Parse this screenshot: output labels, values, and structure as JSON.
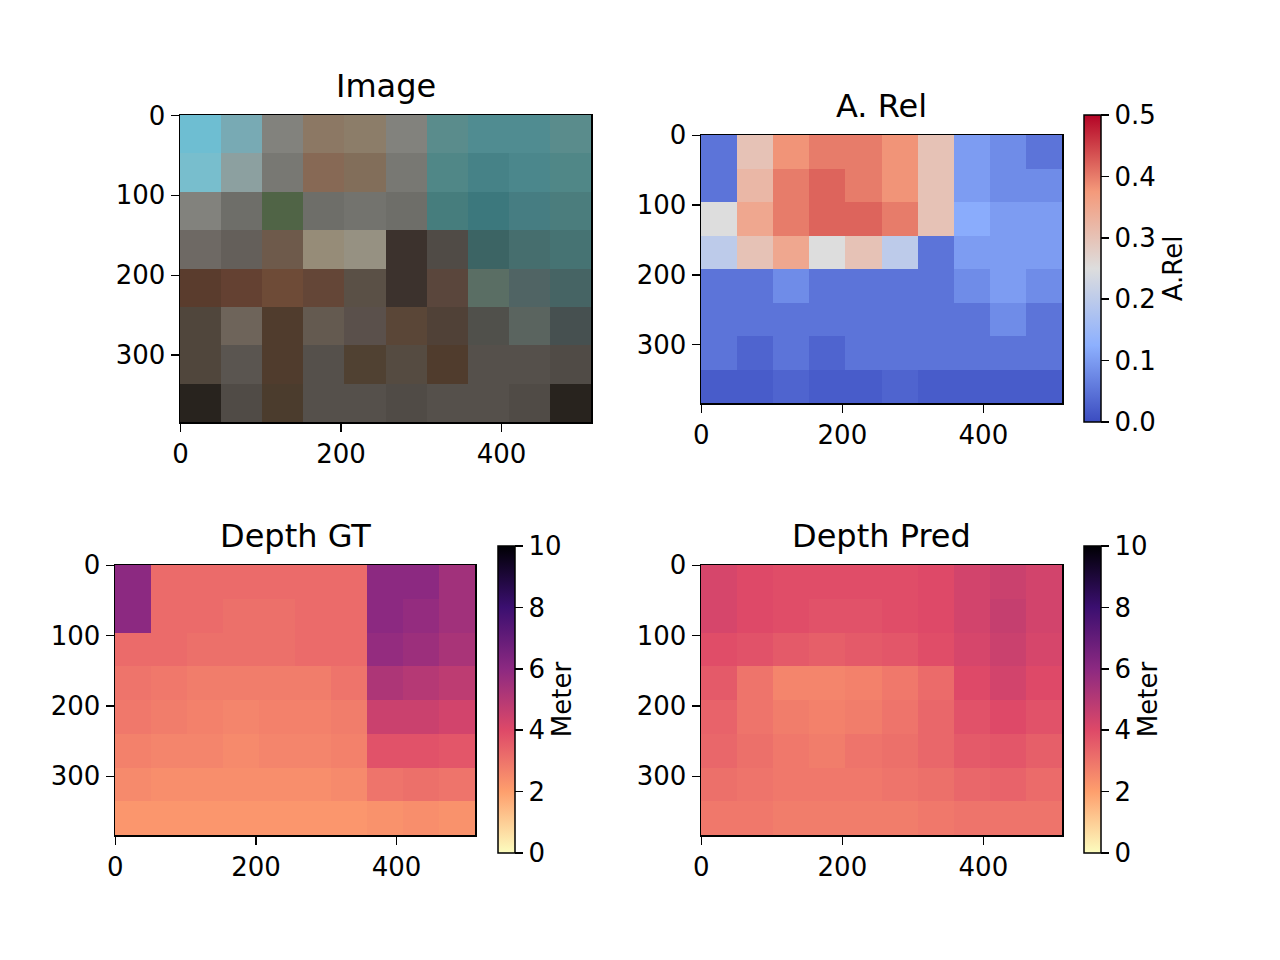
{
  "chart_data": [
    {
      "type": "image",
      "title": "Image",
      "xlim": [
        -0.5,
        511.5
      ],
      "ylim": [
        383.5,
        -0.5
      ],
      "xticks": [
        0,
        200,
        400
      ],
      "yticks": [
        0,
        100,
        200,
        300
      ],
      "pixels": [
        [
          [
            110,
            190,
            210
          ],
          [
            120,
            170,
            180
          ],
          [
            130,
            130,
            125
          ],
          [
            140,
            120,
            100
          ],
          [
            140,
            125,
            105
          ],
          [
            130,
            130,
            125
          ],
          [
            90,
            140,
            140
          ],
          [
            80,
            140,
            145
          ],
          [
            80,
            140,
            145
          ],
          [
            90,
            140,
            140
          ]
        ],
        [
          [
            120,
            190,
            205
          ],
          [
            140,
            160,
            160
          ],
          [
            120,
            120,
            115
          ],
          [
            135,
            105,
            85
          ],
          [
            130,
            110,
            90
          ],
          [
            120,
            120,
            115
          ],
          [
            80,
            135,
            135
          ],
          [
            70,
            130,
            135
          ],
          [
            75,
            135,
            140
          ],
          [
            80,
            135,
            135
          ]
        ],
        [
          [
            130,
            130,
            125
          ],
          [
            110,
            110,
            105
          ],
          [
            80,
            100,
            70
          ],
          [
            110,
            110,
            105
          ],
          [
            115,
            115,
            110
          ],
          [
            110,
            110,
            105
          ],
          [
            70,
            125,
            125
          ],
          [
            60,
            120,
            125
          ],
          [
            70,
            125,
            130
          ],
          [
            75,
            125,
            125
          ]
        ],
        [
          [
            110,
            105,
            100
          ],
          [
            100,
            95,
            90
          ],
          [
            110,
            90,
            75
          ],
          [
            150,
            140,
            120
          ],
          [
            150,
            145,
            130
          ],
          [
            60,
            50,
            45
          ],
          [
            80,
            75,
            70
          ],
          [
            60,
            100,
            100
          ],
          [
            70,
            110,
            110
          ],
          [
            70,
            115,
            115
          ]
        ],
        [
          [
            90,
            60,
            45
          ],
          [
            100,
            65,
            50
          ],
          [
            110,
            75,
            55
          ],
          [
            100,
            70,
            55
          ],
          [
            90,
            80,
            70
          ],
          [
            60,
            50,
            45
          ],
          [
            90,
            70,
            60
          ],
          [
            90,
            110,
            100
          ],
          [
            80,
            100,
            100
          ],
          [
            70,
            100,
            100
          ]
        ],
        [
          [
            80,
            70,
            60
          ],
          [
            110,
            100,
            90
          ],
          [
            80,
            60,
            45
          ],
          [
            100,
            90,
            80
          ],
          [
            90,
            80,
            75
          ],
          [
            90,
            70,
            55
          ],
          [
            80,
            65,
            55
          ],
          [
            80,
            80,
            75
          ],
          [
            90,
            100,
            95
          ],
          [
            70,
            80,
            80
          ]
        ],
        [
          [
            80,
            70,
            60
          ],
          [
            90,
            85,
            80
          ],
          [
            80,
            60,
            45
          ],
          [
            85,
            80,
            75
          ],
          [
            80,
            65,
            50
          ],
          [
            85,
            75,
            65
          ],
          [
            80,
            60,
            45
          ],
          [
            85,
            80,
            75
          ],
          [
            85,
            80,
            75
          ],
          [
            80,
            75,
            70
          ]
        ],
        [
          [
            40,
            35,
            30
          ],
          [
            80,
            75,
            70
          ],
          [
            75,
            60,
            45
          ],
          [
            85,
            80,
            75
          ],
          [
            85,
            80,
            75
          ],
          [
            80,
            75,
            70
          ],
          [
            85,
            80,
            75
          ],
          [
            85,
            80,
            75
          ],
          [
            80,
            75,
            70
          ],
          [
            40,
            35,
            30
          ]
        ]
      ]
    },
    {
      "type": "heatmap",
      "title": "A. Rel",
      "xlim": [
        -0.5,
        511.5
      ],
      "ylim": [
        383.5,
        -0.5
      ],
      "xticks": [
        0,
        200,
        400
      ],
      "yticks": [
        0,
        100,
        200,
        300
      ],
      "color": "coolwarm",
      "cells": [
        [
          0.05,
          0.3,
          0.38,
          0.4,
          0.4,
          0.38,
          0.3,
          0.1,
          0.08,
          0.05
        ],
        [
          0.05,
          0.32,
          0.4,
          0.42,
          0.4,
          0.38,
          0.3,
          0.1,
          0.08,
          0.08
        ],
        [
          0.25,
          0.35,
          0.4,
          0.42,
          0.42,
          0.4,
          0.3,
          0.12,
          0.1,
          0.1
        ],
        [
          0.2,
          0.3,
          0.35,
          0.25,
          0.3,
          0.2,
          0.05,
          0.1,
          0.1,
          0.1
        ],
        [
          0.05,
          0.05,
          0.08,
          0.05,
          0.05,
          0.05,
          0.05,
          0.08,
          0.1,
          0.08
        ],
        [
          0.05,
          0.05,
          0.05,
          0.05,
          0.05,
          0.05,
          0.05,
          0.05,
          0.08,
          0.05
        ],
        [
          0.05,
          0.03,
          0.05,
          0.03,
          0.05,
          0.05,
          0.05,
          0.05,
          0.05,
          0.05
        ],
        [
          0.02,
          0.02,
          0.03,
          0.02,
          0.02,
          0.03,
          0.02,
          0.02,
          0.02,
          0.02
        ]
      ],
      "colorbar": {
        "label": "A.Rel",
        "range": [
          0,
          0.5
        ],
        "ticks": [
          {
            "value": 0,
            "label": "0.0"
          },
          0.1,
          0.2,
          0.3,
          0.4,
          0.5
        ]
      }
    },
    {
      "type": "heatmap",
      "title": "Depth GT",
      "xlim": [
        -0.5,
        511.5
      ],
      "ylim": [
        383.5,
        -0.5
      ],
      "xticks": [
        0,
        200,
        400
      ],
      "yticks": [
        0,
        100,
        200,
        300
      ],
      "color": "magma_r",
      "cells": [
        [
          6.0,
          3.2,
          3.2,
          3.2,
          3.2,
          3.2,
          3.2,
          6.0,
          6.0,
          5.5
        ],
        [
          6.0,
          3.2,
          3.2,
          3.1,
          3.1,
          3.2,
          3.2,
          6.0,
          5.8,
          5.5
        ],
        [
          3.2,
          3.2,
          3.1,
          3.1,
          3.1,
          3.2,
          3.2,
          5.8,
          5.6,
          5.3
        ],
        [
          3.0,
          2.9,
          2.8,
          2.8,
          2.8,
          2.8,
          3.0,
          5.2,
          5.0,
          4.8
        ],
        [
          2.9,
          2.8,
          2.7,
          2.6,
          2.7,
          2.7,
          2.8,
          4.5,
          4.5,
          4.3
        ],
        [
          2.7,
          2.6,
          2.6,
          2.5,
          2.6,
          2.6,
          2.7,
          3.8,
          3.8,
          3.7
        ],
        [
          2.5,
          2.4,
          2.4,
          2.4,
          2.4,
          2.4,
          2.5,
          3.0,
          3.1,
          3.0
        ],
        [
          2.2,
          2.2,
          2.2,
          2.2,
          2.2,
          2.2,
          2.2,
          2.3,
          2.4,
          2.3
        ]
      ],
      "colorbar": {
        "label": "Meter",
        "range": [
          0,
          10
        ],
        "ticks": [
          0,
          2,
          4,
          6,
          8,
          10
        ]
      }
    },
    {
      "type": "heatmap",
      "title": "Depth Pred",
      "xlim": [
        -0.5,
        511.5
      ],
      "ylim": [
        383.5,
        -0.5
      ],
      "xticks": [
        0,
        200,
        400
      ],
      "yticks": [
        0,
        100,
        200,
        300
      ],
      "color": "magma_r",
      "cells": [
        [
          4.2,
          4.0,
          3.9,
          3.9,
          3.9,
          3.9,
          4.0,
          4.3,
          4.5,
          4.3
        ],
        [
          4.2,
          4.0,
          3.9,
          3.8,
          3.8,
          3.9,
          4.0,
          4.3,
          4.6,
          4.3
        ],
        [
          3.9,
          3.8,
          3.6,
          3.5,
          3.6,
          3.7,
          3.9,
          4.2,
          4.5,
          4.2
        ],
        [
          3.6,
          3.0,
          2.6,
          2.6,
          2.7,
          2.9,
          3.2,
          4.0,
          4.3,
          4.0
        ],
        [
          3.4,
          3.0,
          2.8,
          2.7,
          2.8,
          3.0,
          3.3,
          3.8,
          4.0,
          3.8
        ],
        [
          3.3,
          3.1,
          2.9,
          2.8,
          3.0,
          3.1,
          3.3,
          3.6,
          3.7,
          3.5
        ],
        [
          3.1,
          3.0,
          2.9,
          2.9,
          2.9,
          3.0,
          3.1,
          3.3,
          3.4,
          3.2
        ],
        [
          2.9,
          2.9,
          2.8,
          2.8,
          2.8,
          2.8,
          2.9,
          3.0,
          3.0,
          3.0
        ]
      ],
      "colorbar": {
        "label": "Meter",
        "range": [
          0,
          10
        ],
        "ticks": [
          0,
          2,
          4,
          6,
          8,
          10
        ]
      }
    }
  ]
}
